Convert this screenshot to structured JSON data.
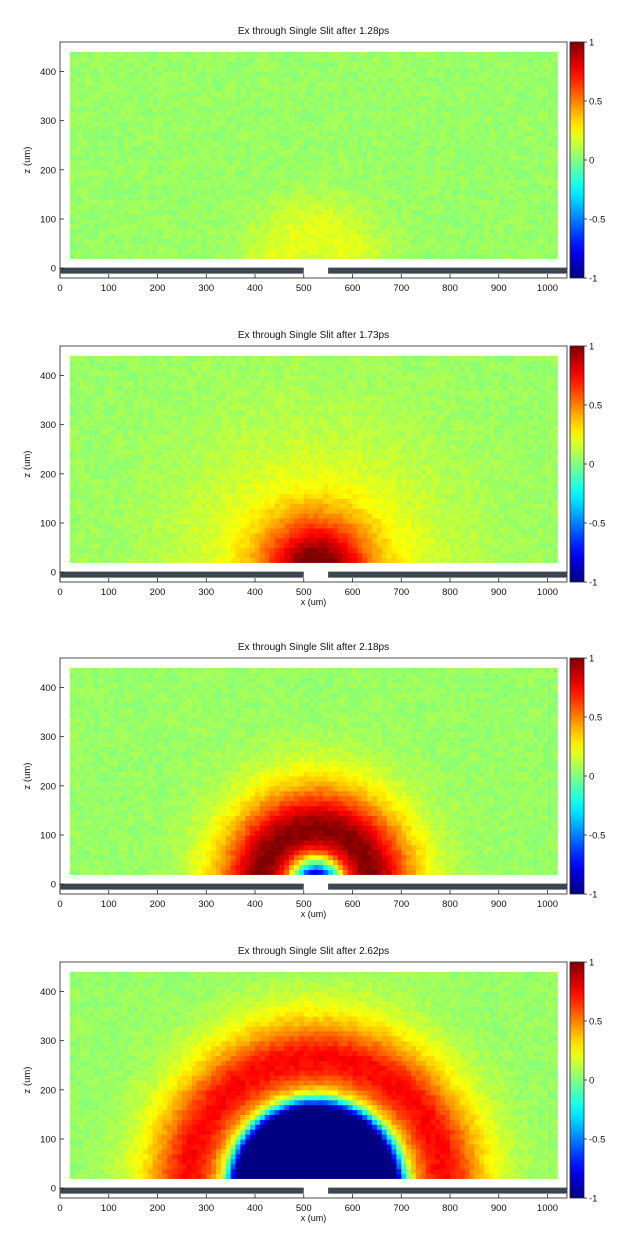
{
  "chart_data": [
    {
      "type": "heatmap",
      "title": "Ex through Single Slit after 1.28ps",
      "xlabel": "",
      "ylabel": "z (um)",
      "xlim": [
        0,
        1040
      ],
      "ylim": [
        -20,
        460
      ],
      "xticks": [
        0,
        100,
        200,
        300,
        400,
        500,
        600,
        700,
        800,
        900,
        1000
      ],
      "yticks": [
        0,
        100,
        200,
        300,
        400
      ],
      "domain_x": [
        20,
        1020
      ],
      "domain_z": [
        20,
        440
      ],
      "slit": {
        "start": 500,
        "end": 550
      },
      "colorbar": {
        "min": -1,
        "max": 1,
        "ticks": [
          1,
          0.5,
          0,
          -0.5,
          -1
        ],
        "colormap": "jet"
      },
      "background_level": 0.05,
      "wavefronts": [
        {
          "center_x": 525,
          "radius": 70,
          "width": 55,
          "amplitude": 0.15
        }
      ]
    },
    {
      "type": "heatmap",
      "title": "Ex through Single Slit after 1.73ps",
      "xlabel": "x (um)",
      "ylabel": "z (um)",
      "xlim": [
        0,
        1040
      ],
      "ylim": [
        -20,
        460
      ],
      "xticks": [
        0,
        100,
        200,
        300,
        400,
        500,
        600,
        700,
        800,
        900,
        1000
      ],
      "yticks": [
        0,
        100,
        200,
        300,
        400
      ],
      "domain_x": [
        20,
        1020
      ],
      "domain_z": [
        20,
        440
      ],
      "slit": {
        "start": 500,
        "end": 550
      },
      "colorbar": {
        "min": -1,
        "max": 1,
        "ticks": [
          1,
          0.5,
          0,
          -0.5,
          -1
        ],
        "colormap": "jet"
      },
      "background_level": 0.05,
      "wavefronts": [
        {
          "center_x": 525,
          "radius": 0,
          "width": 75,
          "amplitude": 0.82
        },
        {
          "center_x": 525,
          "radius": 0,
          "width": 185,
          "amplitude": 0.25
        }
      ]
    },
    {
      "type": "heatmap",
      "title": "Ex through Single Slit after 2.18ps",
      "xlabel": "x (um)",
      "ylabel": "z (um)",
      "xlim": [
        0,
        1040
      ],
      "ylim": [
        -20,
        460
      ],
      "xticks": [
        0,
        100,
        200,
        300,
        400,
        500,
        600,
        700,
        800,
        900,
        1000
      ],
      "yticks": [
        0,
        100,
        200,
        300,
        400
      ],
      "domain_x": [
        20,
        1020
      ],
      "domain_z": [
        20,
        440
      ],
      "slit": {
        "start": 500,
        "end": 550
      },
      "colorbar": {
        "min": -1,
        "max": 1,
        "ticks": [
          1,
          0.5,
          0,
          -0.5,
          -1
        ],
        "colormap": "jet"
      },
      "background_level": 0.05,
      "wavefronts": [
        {
          "center_x": 525,
          "radius": 100,
          "width": 55,
          "amplitude": 0.75
        },
        {
          "center_x": 525,
          "radius": 160,
          "width": 70,
          "amplitude": 0.28
        },
        {
          "center_x": 525,
          "radius": 0,
          "width": 35,
          "amplitude": -1.5
        }
      ]
    },
    {
      "type": "heatmap",
      "title": "Ex through Single Slit after 2.62ps",
      "xlabel": "x (um)",
      "ylabel": "z (um)",
      "xlim": [
        0,
        1040
      ],
      "ylim": [
        -20,
        460
      ],
      "xticks": [
        0,
        100,
        200,
        300,
        400,
        500,
        600,
        700,
        800,
        900,
        1000
      ],
      "yticks": [
        0,
        100,
        200,
        300,
        400
      ],
      "domain_x": [
        20,
        1020
      ],
      "domain_z": [
        20,
        440
      ],
      "slit": {
        "start": 500,
        "end": 550
      },
      "colorbar": {
        "min": -1,
        "max": 1,
        "ticks": [
          1,
          0.5,
          0,
          -0.5,
          -1
        ],
        "colormap": "jet"
      },
      "background_level": 0.05,
      "wavefronts": [
        {
          "center_x": 525,
          "radius": 255,
          "width": 50,
          "amplitude": 0.58
        },
        {
          "center_x": 525,
          "radius": 320,
          "width": 60,
          "amplitude": 0.2
        },
        {
          "center_x": 525,
          "radius": 0,
          "width": 160,
          "amplitude": -1.2,
          "shape": "plateau"
        }
      ]
    }
  ]
}
